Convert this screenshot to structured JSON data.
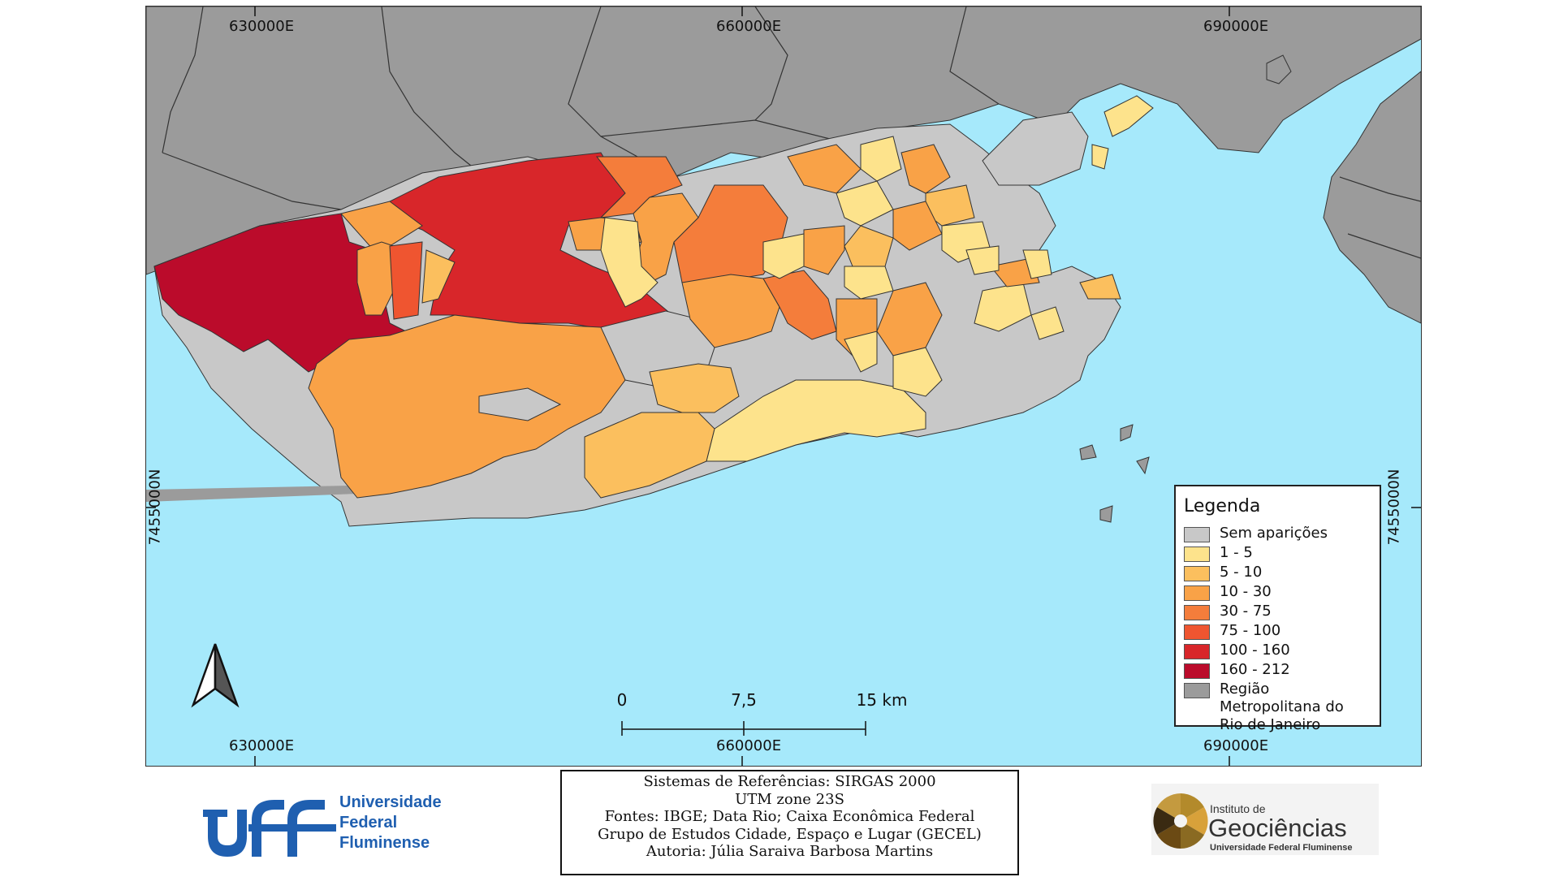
{
  "map": {
    "coords": {
      "top": [
        "630000E",
        "660000E",
        "690000E"
      ],
      "bottom": [
        "630000E",
        "660000E",
        "690000E"
      ],
      "left": "7455000N",
      "right": "7455000N"
    },
    "colors": {
      "water": "#a6e9fb",
      "metro": "#9b9b9b",
      "none": "#c8c8c8",
      "c1": "#fde38c",
      "c2": "#fbbf5e",
      "c3": "#f9a247",
      "c4": "#f47d3b",
      "c5": "#ef5530",
      "c6": "#d8262a",
      "c7": "#bb0b2b"
    }
  },
  "legend": {
    "title": "Legenda",
    "items": [
      {
        "label": "Sem aparições",
        "color": "#c8c8c8"
      },
      {
        "label": "1 - 5",
        "color": "#fde38c"
      },
      {
        "label": "5 - 10",
        "color": "#fbbf5e"
      },
      {
        "label": "10 - 30",
        "color": "#f9a247"
      },
      {
        "label": "30 - 75",
        "color": "#f47d3b"
      },
      {
        "label": "75 - 100",
        "color": "#ef5530"
      },
      {
        "label": "100 - 160",
        "color": "#d8262a"
      },
      {
        "label": "160 - 212",
        "color": "#bb0b2b"
      },
      {
        "label": "Região Metropolitana do Rio de Janeiro",
        "color": "#9b9b9b"
      }
    ]
  },
  "scale": {
    "labels": [
      "0",
      "7,5",
      "15 km"
    ]
  },
  "info": {
    "lines": [
      "Sistemas de Referências: SIRGAS 2000",
      "UTM zone 23S",
      "Fontes: IBGE; Data Rio; Caixa Econômica Federal",
      "Grupo de Estudos Cidade, Espaço e Lugar (GECEL)",
      "Autoria: Júlia Saraiva Barbosa Martins"
    ]
  },
  "logos": {
    "uff": {
      "mark": "uff",
      "lines": [
        "Universidade",
        "Federal",
        "Fluminense"
      ],
      "color": "#1f5fb0"
    },
    "geo": {
      "small": "Instituto de",
      "big": "Geociências",
      "sub": "Universidade Federal Fluminense"
    }
  }
}
